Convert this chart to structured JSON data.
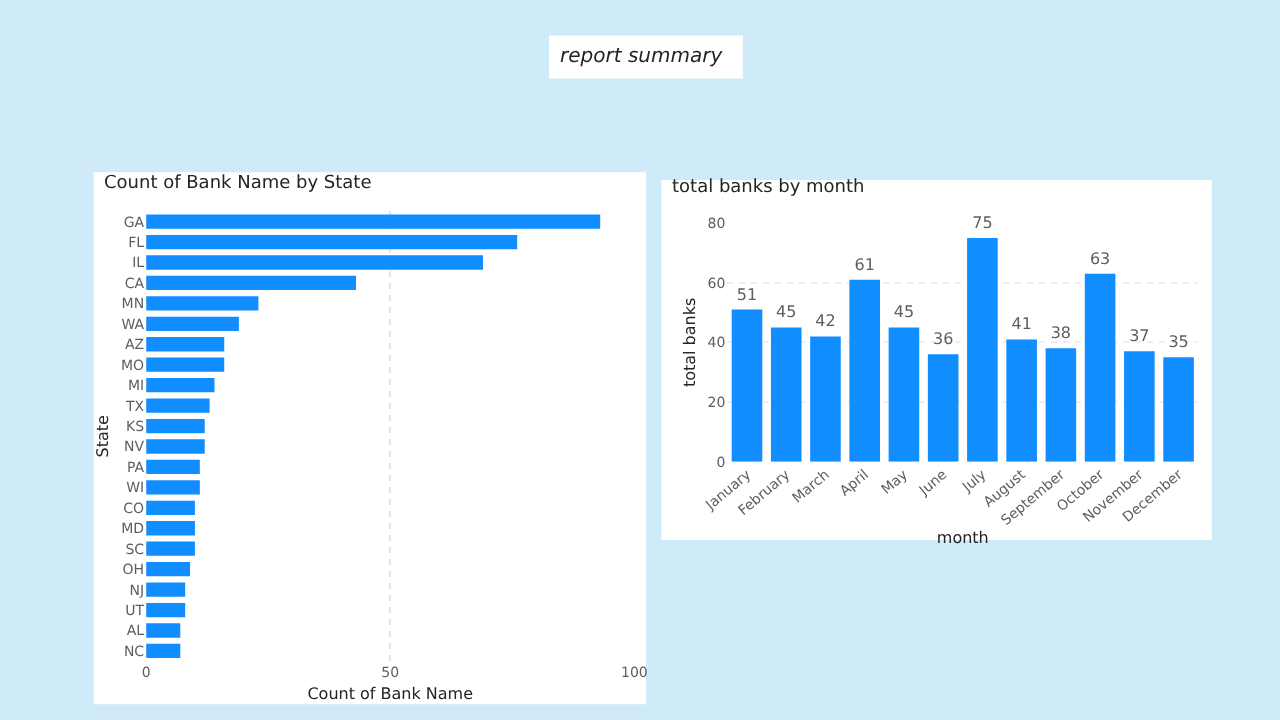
{
  "chart_data": [
    {
      "type": "other",
      "title": "report summary"
    },
    {
      "type": "bar",
      "orientation": "horizontal",
      "title": "Count of Bank Name by State",
      "xlabel": "Count of Bank Name",
      "ylabel": "State",
      "categories": [
        "GA",
        "FL",
        "IL",
        "CA",
        "MN",
        "WA",
        "AZ",
        "MO",
        "MI",
        "TX",
        "KS",
        "NV",
        "PA",
        "WI",
        "CO",
        "MD",
        "SC",
        "OH",
        "NJ",
        "UT",
        "AL",
        "NC"
      ],
      "series": [
        {
          "color": "#118dff",
          "values": [
            93,
            76,
            69,
            43,
            23,
            19,
            16,
            16,
            14,
            13,
            12,
            12,
            11,
            11,
            10,
            10,
            10,
            9,
            8,
            8,
            7,
            7
          ]
        }
      ],
      "xlim": [
        0,
        100
      ],
      "xticks": [
        0,
        50,
        100
      ],
      "grid": "x",
      "legend": false
    },
    {
      "type": "bar",
      "title": "total banks by month",
      "xlabel": "month",
      "ylabel": "total banks",
      "categories": [
        "January",
        "February",
        "March",
        "April",
        "May",
        "June",
        "July",
        "August",
        "September",
        "October",
        "November",
        "December"
      ],
      "series": [
        {
          "color": "#118dff",
          "values": [
            51,
            45,
            42,
            61,
            45,
            36,
            75,
            41,
            38,
            63,
            37,
            35
          ]
        }
      ],
      "ylim": [
        0,
        80
      ],
      "yticks": [
        0,
        20,
        40,
        60,
        80
      ],
      "grid": "y",
      "data_labels": true,
      "legend": false
    }
  ]
}
